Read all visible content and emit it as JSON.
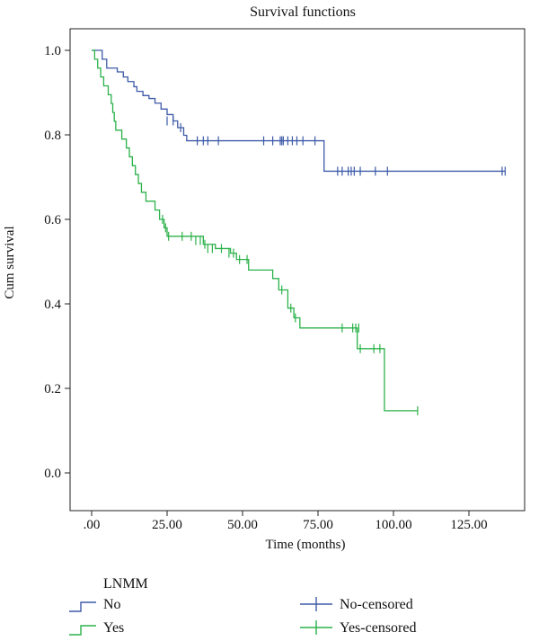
{
  "chart_data": {
    "type": "line",
    "title": "Survival functions",
    "xlabel": "Time (months)",
    "ylabel": "Cum survival",
    "xlim": [
      0,
      140
    ],
    "ylim": [
      0,
      1.0
    ],
    "x_ticks": [
      0,
      25,
      50,
      75,
      100,
      125
    ],
    "x_tick_labels": [
      ".00",
      "25.00",
      "50.00",
      "75.00",
      "100.00",
      "125.00"
    ],
    "y_ticks": [
      0,
      0.2,
      0.4,
      0.6,
      0.8,
      1.0
    ],
    "y_tick_labels": [
      "0.0",
      "0.2",
      "0.4",
      "0.6",
      "0.8",
      "1.0"
    ],
    "grid": false,
    "legend": {
      "title": "LNMM",
      "placement": "bottom",
      "entries": [
        "No",
        "Yes",
        "No-censored",
        "Yes-censored"
      ]
    },
    "colors": {
      "No": "#3d5aa8",
      "Yes": "#2bb24a"
    },
    "series": [
      {
        "name": "No",
        "steps": [
          [
            0,
            1.0
          ],
          [
            3.5,
            0.979
          ],
          [
            5,
            0.958
          ],
          [
            8.5,
            0.949
          ],
          [
            10.5,
            0.937
          ],
          [
            12,
            0.926
          ],
          [
            14,
            0.914
          ],
          [
            15,
            0.903
          ],
          [
            17,
            0.893
          ],
          [
            19,
            0.886
          ],
          [
            21,
            0.875
          ],
          [
            23,
            0.861
          ],
          [
            25,
            0.848
          ],
          [
            27,
            0.833
          ],
          [
            28.5,
            0.817
          ],
          [
            30.5,
            0.799
          ],
          [
            31.5,
            0.786
          ],
          [
            77,
            0.714
          ]
        ],
        "end": 137,
        "censored": [
          [
            25,
            0.833
          ],
          [
            27,
            0.833
          ],
          [
            29.5,
            0.817
          ],
          [
            35,
            0.786
          ],
          [
            37,
            0.786
          ],
          [
            38.5,
            0.786
          ],
          [
            42,
            0.786
          ],
          [
            57,
            0.786
          ],
          [
            60,
            0.786
          ],
          [
            62.5,
            0.786
          ],
          [
            63,
            0.786
          ],
          [
            63.5,
            0.786
          ],
          [
            65,
            0.786
          ],
          [
            66.5,
            0.786
          ],
          [
            68,
            0.786
          ],
          [
            70,
            0.786
          ],
          [
            74,
            0.786
          ],
          [
            81.5,
            0.714
          ],
          [
            83,
            0.714
          ],
          [
            85,
            0.714
          ],
          [
            86,
            0.714
          ],
          [
            87,
            0.714
          ],
          [
            89,
            0.714
          ],
          [
            94,
            0.714
          ],
          [
            98,
            0.714
          ],
          [
            136,
            0.714
          ],
          [
            137,
            0.714
          ]
        ]
      },
      {
        "name": "Yes",
        "steps": [
          [
            0,
            1.0
          ],
          [
            1,
            0.979
          ],
          [
            2,
            0.958
          ],
          [
            3,
            0.937
          ],
          [
            4,
            0.916
          ],
          [
            5.5,
            0.895
          ],
          [
            6.5,
            0.874
          ],
          [
            7,
            0.853
          ],
          [
            7.5,
            0.832
          ],
          [
            8,
            0.811
          ],
          [
            10,
            0.79
          ],
          [
            11.5,
            0.769
          ],
          [
            12.5,
            0.748
          ],
          [
            13.5,
            0.727
          ],
          [
            14.5,
            0.706
          ],
          [
            15.5,
            0.685
          ],
          [
            16.5,
            0.664
          ],
          [
            18,
            0.643
          ],
          [
            21,
            0.622
          ],
          [
            22.5,
            0.6
          ],
          [
            24,
            0.58
          ],
          [
            25,
            0.56
          ],
          [
            37,
            0.541
          ],
          [
            41,
            0.531
          ],
          [
            46,
            0.52
          ],
          [
            48,
            0.505
          ],
          [
            52,
            0.48
          ],
          [
            60,
            0.46
          ],
          [
            62,
            0.433
          ],
          [
            65,
            0.39
          ],
          [
            67,
            0.367
          ],
          [
            69,
            0.343
          ],
          [
            88,
            0.294
          ],
          [
            97,
            0.147
          ]
        ],
        "end": 108,
        "censored": [
          [
            23.5,
            0.6
          ],
          [
            24.5,
            0.58
          ],
          [
            25.5,
            0.56
          ],
          [
            30,
            0.56
          ],
          [
            33,
            0.56
          ],
          [
            34.5,
            0.55
          ],
          [
            36,
            0.55
          ],
          [
            37.5,
            0.541
          ],
          [
            38.5,
            0.531
          ],
          [
            40,
            0.531
          ],
          [
            43,
            0.531
          ],
          [
            45.5,
            0.52
          ],
          [
            47,
            0.52
          ],
          [
            49,
            0.505
          ],
          [
            51.5,
            0.505
          ],
          [
            63,
            0.433
          ],
          [
            66,
            0.39
          ],
          [
            67.5,
            0.367
          ],
          [
            83,
            0.343
          ],
          [
            86.5,
            0.343
          ],
          [
            87.5,
            0.343
          ],
          [
            88.5,
            0.343
          ],
          [
            89,
            0.294
          ],
          [
            93.5,
            0.294
          ],
          [
            95.5,
            0.294
          ],
          [
            108,
            0.147
          ]
        ]
      }
    ]
  }
}
